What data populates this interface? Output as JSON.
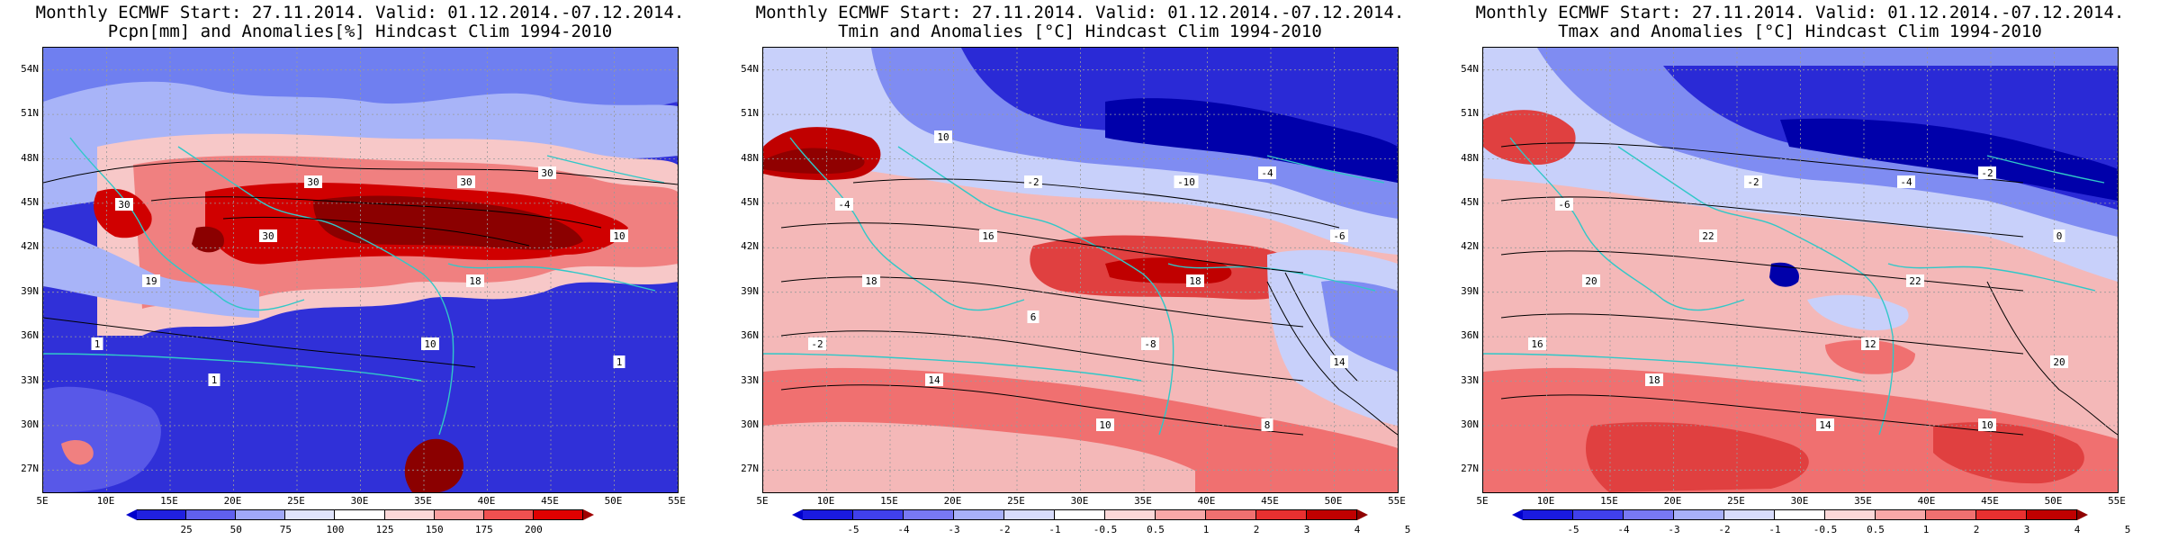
{
  "panels": [
    {
      "title_line1": "Monthly ECMWF Start: 27.11.2014. Valid: 01.12.2014.-07.12.2014.",
      "title_line2": "Pcpn[mm] and Anomalies[%] Hindcast Clim 1994-2010",
      "variable": "precipitation",
      "colorbar_labels": [
        "25",
        "50",
        "75",
        "100",
        "125",
        "150",
        "175",
        "200"
      ],
      "colorbar_colors": [
        "#0000cc",
        "#2020e0",
        "#6060ee",
        "#a0a8f8",
        "#e0e4fc",
        "#ffffff",
        "#fcd8d8",
        "#f8a0a0",
        "#f05050",
        "#e00000",
        "#a00000"
      ],
      "contour_labels": [
        "30",
        "30",
        "30",
        "30",
        "10",
        "10",
        "1",
        "1",
        "1",
        "18",
        "19",
        "30"
      ]
    },
    {
      "title_line1": "Monthly ECMWF Start: 27.11.2014. Valid: 01.12.2014.-07.12.2014.",
      "title_line2": "Tmin and Anomalies [°C] Hindcast Clim 1994-2010",
      "variable": "tmin",
      "colorbar_labels": [
        "-5",
        "-4",
        "-3",
        "-2",
        "-1",
        "-0.5",
        "0.5",
        "1",
        "2",
        "3",
        "4",
        "5"
      ],
      "colorbar_colors": [
        "#0000cc",
        "#1a1ae0",
        "#4040ec",
        "#7878f4",
        "#a8b0f8",
        "#d8dcfc",
        "#ffffff",
        "#fcd8d8",
        "#f8a8a8",
        "#f07070",
        "#e83030",
        "#c00000",
        "#900000"
      ],
      "contour_labels": [
        "-4",
        "-2",
        "-10",
        "-4",
        "-6",
        "-8",
        "-2",
        "14",
        "14",
        "18",
        "18",
        "16",
        "10",
        "8",
        "6",
        "10"
      ]
    },
    {
      "title_line1": "Monthly ECMWF Start: 27.11.2014. Valid: 01.12.2014.-07.12.2014.",
      "title_line2": "Tmax and Anomalies [°C] Hindcast Clim 1994-2010",
      "variable": "tmax",
      "colorbar_labels": [
        "-5",
        "-4",
        "-3",
        "-2",
        "-1",
        "-0.5",
        "0.5",
        "1",
        "2",
        "3",
        "4",
        "5"
      ],
      "colorbar_colors": [
        "#0000cc",
        "#1a1ae0",
        "#4040ec",
        "#7878f4",
        "#a8b0f8",
        "#d8dcfc",
        "#ffffff",
        "#fcd8d8",
        "#f8a8a8",
        "#f07070",
        "#e83030",
        "#c00000",
        "#900000"
      ],
      "contour_labels": [
        "-6",
        "-2",
        "-4",
        "-2",
        "0",
        "12",
        "16",
        "18",
        "20",
        "22",
        "20",
        "22",
        "14",
        "10"
      ]
    }
  ],
  "lat_labels": [
    "54N",
    "51N",
    "48N",
    "45N",
    "42N",
    "39N",
    "36N",
    "33N",
    "30N",
    "27N"
  ],
  "lon_labels": [
    "5E",
    "10E",
    "15E",
    "20E",
    "25E",
    "30E",
    "35E",
    "40E",
    "45E",
    "50E",
    "55E"
  ]
}
